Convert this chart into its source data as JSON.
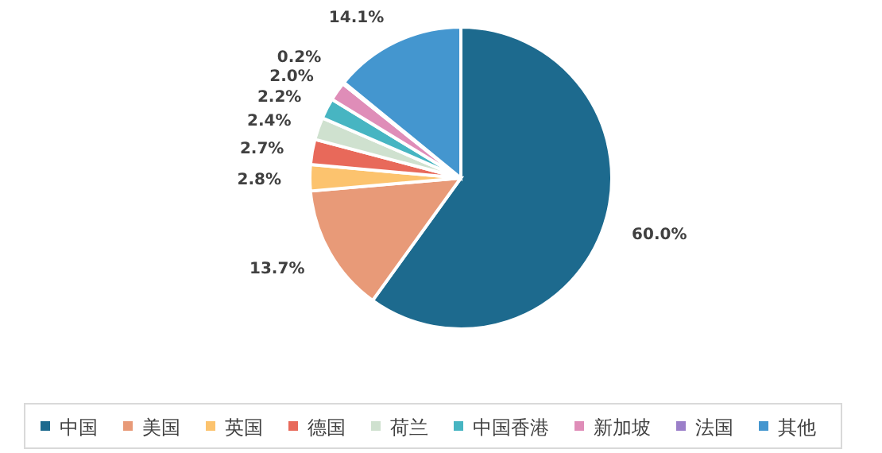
{
  "chart_data": {
    "type": "pie",
    "categories": [
      "中国",
      "美国",
      "英国",
      "德国",
      "荷兰",
      "中国香港",
      "新加坡",
      "法国",
      "其他"
    ],
    "values": [
      60.0,
      13.7,
      2.8,
      2.7,
      2.4,
      2.2,
      2.0,
      0.2,
      14.1
    ],
    "value_labels": [
      "60.0%",
      "13.7%",
      "2.8%",
      "2.7%",
      "2.4%",
      "2.2%",
      "2.0%",
      "0.2%",
      "14.1%"
    ],
    "colors": [
      "#1d6a8e",
      "#e89a78",
      "#fcc36e",
      "#e8695a",
      "#cfe1cf",
      "#47b5c2",
      "#df8db8",
      "#9b7fc9",
      "#4496cf"
    ],
    "legend": "bottom"
  }
}
